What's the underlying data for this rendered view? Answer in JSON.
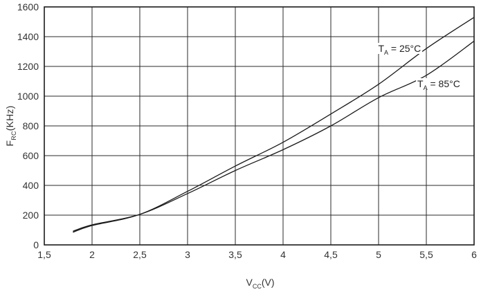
{
  "colors": {
    "background": "#ffffff",
    "line": "#1a1a1a",
    "grid": "#2a2a2a",
    "text": "#333333"
  },
  "chart_data": {
    "type": "line",
    "title": "",
    "xlabel_parts": {
      "main": "V",
      "sub": "CC",
      "unit": "(V)"
    },
    "ylabel_parts": {
      "main": "F",
      "sub": "RC",
      "unit": "(KHz)"
    },
    "x_range": [
      1.5,
      6
    ],
    "y_range": [
      0,
      1600
    ],
    "grid": true,
    "legend_position": "none",
    "x_ticks": {
      "values": [
        1.5,
        2,
        2.5,
        3,
        3.5,
        4,
        4.5,
        5,
        5.5,
        6
      ],
      "labels": [
        "1,5",
        "2",
        "2,5",
        "3",
        "3,5",
        "4",
        "4,5",
        "5",
        "5,5",
        "6"
      ]
    },
    "y_ticks": {
      "values": [
        0,
        200,
        400,
        600,
        800,
        1000,
        1200,
        1400,
        1600
      ],
      "labels": [
        "0",
        "200",
        "400",
        "600",
        "800",
        "1000",
        "1200",
        "1400",
        "1600"
      ]
    },
    "x": [
      1.8,
      2.0,
      2.5,
      3.0,
      3.5,
      4.0,
      4.5,
      5.0,
      5.5,
      6.0
    ],
    "series": [
      {
        "name": "TA = 25°C",
        "values": [
          85,
          130,
          205,
          360,
          530,
          690,
          880,
          1080,
          1320,
          1530
        ]
      },
      {
        "name": "TA = 85°C",
        "values": [
          92,
          135,
          205,
          345,
          500,
          640,
          800,
          990,
          1140,
          1370
        ]
      }
    ],
    "annotations": [
      {
        "pre": "T",
        "sub": "A",
        "post": " = 25°C",
        "x": 5.22,
        "y": 1320
      },
      {
        "pre": "T",
        "sub": "A",
        "post": " = 85°C",
        "x": 5.63,
        "y": 1085
      }
    ]
  }
}
